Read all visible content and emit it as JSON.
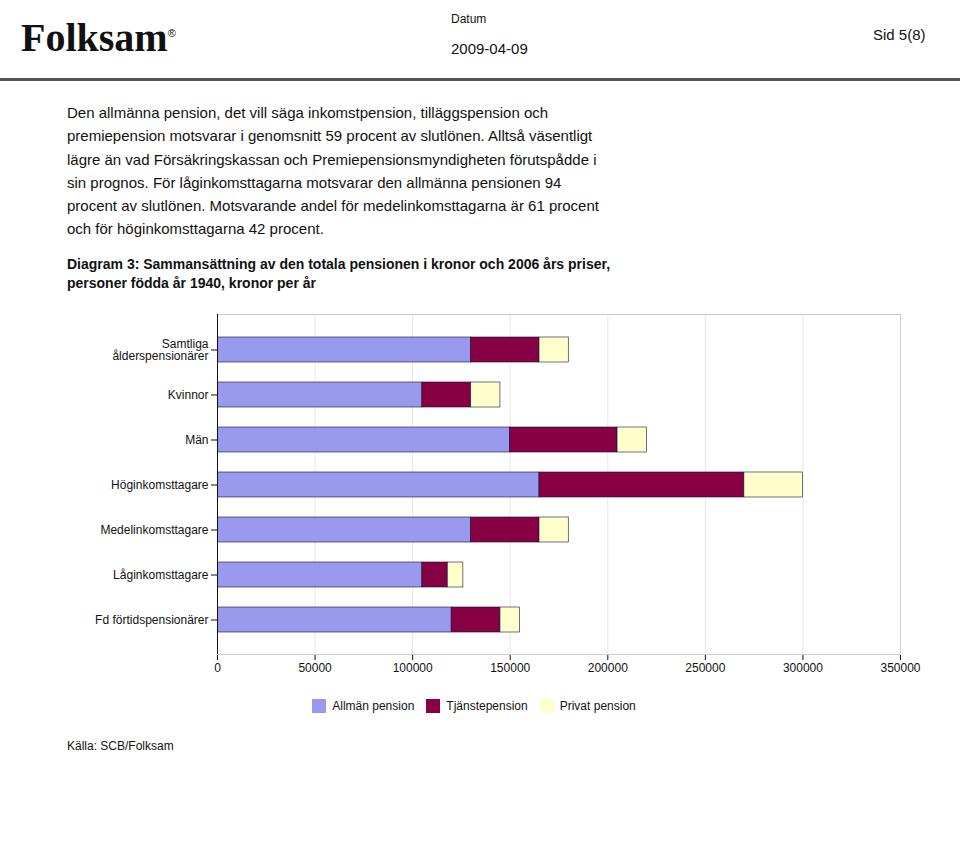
{
  "chart_data": {
    "type": "bar",
    "orientation": "horizontal",
    "stacked": true,
    "title": "Diagram 3: Sammansättning av den totala pensionen i kronor och 2006 års priser,\npersoner födda år 1940, kronor per år",
    "categories": [
      "Samtliga\nålderspensionärer",
      "Kvinnor",
      "Män",
      "Höginkomsttagare",
      "Medelinkomsttagare",
      "Låginkomsttagare",
      "Fd förtidspensionärer"
    ],
    "series": [
      {
        "name": "Allmän pension",
        "color": "#9999ee",
        "values": [
          130000,
          105000,
          150000,
          165000,
          130000,
          105000,
          120000
        ]
      },
      {
        "name": "Tjänstepension",
        "color": "#880044",
        "values": [
          35000,
          25000,
          55000,
          105000,
          35000,
          13000,
          25000
        ]
      },
      {
        "name": "Privat pension",
        "color": "#ffffcc",
        "values": [
          15000,
          15000,
          15000,
          30000,
          15000,
          8000,
          10000
        ]
      }
    ],
    "xlim": [
      0,
      350000
    ],
    "xticks": [
      0,
      50000,
      100000,
      150000,
      200000,
      250000,
      300000,
      350000
    ],
    "grid": true,
    "legend": "bottom",
    "annotations": [
      "Folksam",
      "®",
      "Datum",
      "2009-04-09",
      "Sid 5(8)",
      "Den allmänna pension, det vill säga inkomstpension, tilläggspension och\npremiepension motsvarar i genomsnitt 59 procent av slutlönen. Alltså väsentligt\nlägre än vad Försäkringskassan och Premiepensionsmyndigheten förutspådde i\nsin prognos. För låginkomsttagarna motsvarar den allmänna pensionen 94\nprocent av slutlönen. Motsvarande andel för medelinkomsttagarna är 61 procent\noch för höginkomsttagarna 42 procent.",
      "Källa: SCB/Folksam"
    ]
  }
}
